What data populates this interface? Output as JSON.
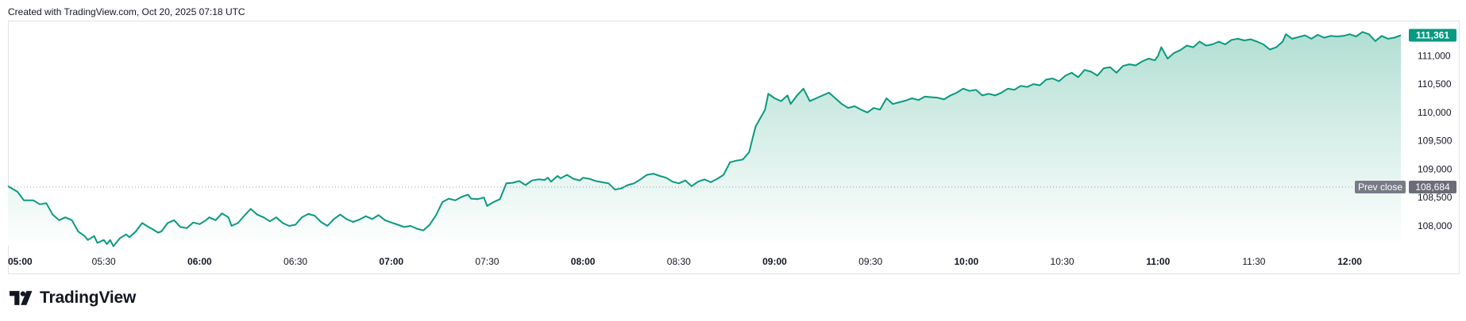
{
  "header": {
    "caption": "Created with TradingView.com, Oct 20, 2025 07:18 UTC"
  },
  "brand": {
    "name": "TradingView",
    "logo_icon": "tradingview-logo-icon"
  },
  "colors": {
    "line": "#089981",
    "fill_top": "#b2dfd3",
    "fill_bottom": "#ffffff",
    "grid": "#e0e3eb",
    "prev_close_label_bg": "#787b86",
    "prev_close_value_bg": "#6a6d78",
    "last_price_bg": "#089981",
    "axis_text": "#131722"
  },
  "chart_data": {
    "type": "area",
    "title": "",
    "xlabel": "",
    "ylabel": "",
    "x_ticks": [
      {
        "label": "05:00",
        "t": 0,
        "bold": true
      },
      {
        "label": "05:30",
        "t": 30,
        "bold": false
      },
      {
        "label": "06:00",
        "t": 60,
        "bold": true
      },
      {
        "label": "06:30",
        "t": 90,
        "bold": false
      },
      {
        "label": "07:00",
        "t": 120,
        "bold": true
      },
      {
        "label": "07:30",
        "t": 150,
        "bold": false
      },
      {
        "label": "08:00",
        "t": 180,
        "bold": true
      },
      {
        "label": "08:30",
        "t": 210,
        "bold": false
      },
      {
        "label": "09:00",
        "t": 240,
        "bold": true
      },
      {
        "label": "09:30",
        "t": 270,
        "bold": false
      },
      {
        "label": "10:00",
        "t": 300,
        "bold": true
      },
      {
        "label": "10:30",
        "t": 330,
        "bold": false
      },
      {
        "label": "11:00",
        "t": 360,
        "bold": true
      },
      {
        "label": "11:30",
        "t": 390,
        "bold": false
      },
      {
        "label": "12:00",
        "t": 420,
        "bold": true
      }
    ],
    "y_ticks": [
      {
        "label": "108,000",
        "value": 108000
      },
      {
        "label": "108,500",
        "value": 108500
      },
      {
        "label": "109,000",
        "value": 109000
      },
      {
        "label": "109,500",
        "value": 109500
      },
      {
        "label": "110,000",
        "value": 110000
      },
      {
        "label": "110,500",
        "value": 110500
      },
      {
        "label": "111,000",
        "value": 111000
      }
    ],
    "ylim": [
      107650,
      111620
    ],
    "xlim": [
      0,
      437
    ],
    "points": [
      [
        0,
        108700
      ],
      [
        3,
        108600
      ],
      [
        5,
        108450
      ],
      [
        8,
        108450
      ],
      [
        10,
        108380
      ],
      [
        12,
        108400
      ],
      [
        14,
        108200
      ],
      [
        16,
        108100
      ],
      [
        18,
        108150
      ],
      [
        20,
        108100
      ],
      [
        22,
        107900
      ],
      [
        24,
        107820
      ],
      [
        25,
        107750
      ],
      [
        27,
        107820
      ],
      [
        28,
        107700
      ],
      [
        30,
        107750
      ],
      [
        31,
        107680
      ],
      [
        32,
        107750
      ],
      [
        33,
        107640
      ],
      [
        35,
        107780
      ],
      [
        37,
        107850
      ],
      [
        38,
        107800
      ],
      [
        40,
        107900
      ],
      [
        42,
        108050
      ],
      [
        44,
        107980
      ],
      [
        45,
        107950
      ],
      [
        47,
        107880
      ],
      [
        48,
        107900
      ],
      [
        50,
        108050
      ],
      [
        52,
        108100
      ],
      [
        54,
        107980
      ],
      [
        56,
        107960
      ],
      [
        58,
        108060
      ],
      [
        60,
        108030
      ],
      [
        62,
        108100
      ],
      [
        63,
        108150
      ],
      [
        65,
        108100
      ],
      [
        67,
        108220
      ],
      [
        69,
        108150
      ],
      [
        70,
        108000
      ],
      [
        72,
        108050
      ],
      [
        74,
        108180
      ],
      [
        76,
        108300
      ],
      [
        78,
        108200
      ],
      [
        80,
        108150
      ],
      [
        82,
        108080
      ],
      [
        84,
        108150
      ],
      [
        86,
        108050
      ],
      [
        88,
        108000
      ],
      [
        90,
        108020
      ],
      [
        92,
        108150
      ],
      [
        94,
        108210
      ],
      [
        96,
        108180
      ],
      [
        98,
        108070
      ],
      [
        100,
        108000
      ],
      [
        102,
        108120
      ],
      [
        104,
        108200
      ],
      [
        106,
        108120
      ],
      [
        108,
        108070
      ],
      [
        110,
        108110
      ],
      [
        112,
        108170
      ],
      [
        114,
        108120
      ],
      [
        116,
        108190
      ],
      [
        118,
        108100
      ],
      [
        120,
        108060
      ],
      [
        122,
        108020
      ],
      [
        124,
        107980
      ],
      [
        126,
        108000
      ],
      [
        128,
        107950
      ],
      [
        130,
        107920
      ],
      [
        132,
        108020
      ],
      [
        134,
        108190
      ],
      [
        136,
        108420
      ],
      [
        138,
        108480
      ],
      [
        140,
        108450
      ],
      [
        142,
        108510
      ],
      [
        144,
        108550
      ],
      [
        145,
        108480
      ],
      [
        147,
        108470
      ],
      [
        149,
        108500
      ],
      [
        150,
        108350
      ],
      [
        152,
        108420
      ],
      [
        154,
        108470
      ],
      [
        156,
        108750
      ],
      [
        158,
        108760
      ],
      [
        160,
        108790
      ],
      [
        162,
        108720
      ],
      [
        164,
        108800
      ],
      [
        166,
        108820
      ],
      [
        168,
        108810
      ],
      [
        169,
        108850
      ],
      [
        170,
        108780
      ],
      [
        172,
        108880
      ],
      [
        173,
        108840
      ],
      [
        175,
        108900
      ],
      [
        177,
        108830
      ],
      [
        179,
        108800
      ],
      [
        180,
        108850
      ],
      [
        182,
        108830
      ],
      [
        184,
        108790
      ],
      [
        186,
        108770
      ],
      [
        188,
        108750
      ],
      [
        190,
        108640
      ],
      [
        192,
        108660
      ],
      [
        194,
        108720
      ],
      [
        196,
        108750
      ],
      [
        198,
        108820
      ],
      [
        200,
        108900
      ],
      [
        202,
        108920
      ],
      [
        204,
        108880
      ],
      [
        206,
        108850
      ],
      [
        208,
        108780
      ],
      [
        210,
        108750
      ],
      [
        212,
        108800
      ],
      [
        214,
        108700
      ],
      [
        216,
        108780
      ],
      [
        218,
        108820
      ],
      [
        220,
        108770
      ],
      [
        222,
        108830
      ],
      [
        224,
        108900
      ],
      [
        226,
        109120
      ],
      [
        228,
        109150
      ],
      [
        230,
        109170
      ],
      [
        232,
        109300
      ],
      [
        234,
        109750
      ],
      [
        236,
        109950
      ],
      [
        237,
        110050
      ],
      [
        238,
        110330
      ],
      [
        240,
        110250
      ],
      [
        242,
        110200
      ],
      [
        244,
        110300
      ],
      [
        245,
        110150
      ],
      [
        247,
        110300
      ],
      [
        249,
        110420
      ],
      [
        251,
        110200
      ],
      [
        253,
        110250
      ],
      [
        255,
        110300
      ],
      [
        257,
        110350
      ],
      [
        259,
        110250
      ],
      [
        261,
        110150
      ],
      [
        263,
        110080
      ],
      [
        265,
        110110
      ],
      [
        267,
        110050
      ],
      [
        269,
        110000
      ],
      [
        271,
        110080
      ],
      [
        273,
        110050
      ],
      [
        275,
        110250
      ],
      [
        277,
        110150
      ],
      [
        279,
        110180
      ],
      [
        281,
        110210
      ],
      [
        283,
        110250
      ],
      [
        285,
        110220
      ],
      [
        287,
        110280
      ],
      [
        289,
        110270
      ],
      [
        291,
        110260
      ],
      [
        293,
        110230
      ],
      [
        295,
        110300
      ],
      [
        297,
        110350
      ],
      [
        299,
        110420
      ],
      [
        301,
        110380
      ],
      [
        303,
        110400
      ],
      [
        305,
        110300
      ],
      [
        307,
        110330
      ],
      [
        309,
        110300
      ],
      [
        311,
        110350
      ],
      [
        313,
        110420
      ],
      [
        315,
        110400
      ],
      [
        317,
        110470
      ],
      [
        319,
        110450
      ],
      [
        321,
        110500
      ],
      [
        323,
        110480
      ],
      [
        325,
        110580
      ],
      [
        327,
        110600
      ],
      [
        329,
        110550
      ],
      [
        331,
        110650
      ],
      [
        333,
        110700
      ],
      [
        335,
        110620
      ],
      [
        337,
        110750
      ],
      [
        339,
        110720
      ],
      [
        341,
        110650
      ],
      [
        343,
        110780
      ],
      [
        345,
        110800
      ],
      [
        347,
        110700
      ],
      [
        349,
        110820
      ],
      [
        351,
        110850
      ],
      [
        353,
        110830
      ],
      [
        355,
        110900
      ],
      [
        357,
        110950
      ],
      [
        359,
        110920
      ],
      [
        360,
        111000
      ],
      [
        361,
        111150
      ],
      [
        363,
        110950
      ],
      [
        365,
        111050
      ],
      [
        367,
        111100
      ],
      [
        369,
        111180
      ],
      [
        371,
        111150
      ],
      [
        373,
        111250
      ],
      [
        375,
        111180
      ],
      [
        377,
        111200
      ],
      [
        379,
        111250
      ],
      [
        381,
        111200
      ],
      [
        383,
        111280
      ],
      [
        385,
        111300
      ],
      [
        387,
        111270
      ],
      [
        389,
        111290
      ],
      [
        391,
        111250
      ],
      [
        393,
        111200
      ],
      [
        395,
        111110
      ],
      [
        397,
        111150
      ],
      [
        399,
        111250
      ],
      [
        400,
        111380
      ],
      [
        402,
        111300
      ],
      [
        404,
        111330
      ],
      [
        406,
        111360
      ],
      [
        408,
        111300
      ],
      [
        410,
        111370
      ],
      [
        412,
        111320
      ],
      [
        414,
        111350
      ],
      [
        416,
        111340
      ],
      [
        418,
        111350
      ],
      [
        420,
        111380
      ],
      [
        422,
        111340
      ],
      [
        424,
        111420
      ],
      [
        426,
        111380
      ],
      [
        428,
        111260
      ],
      [
        430,
        111350
      ],
      [
        432,
        111300
      ],
      [
        434,
        111320
      ],
      [
        436,
        111361
      ]
    ],
    "last": {
      "value": 111361,
      "label": "111,361"
    },
    "prev_close": {
      "value": 108684,
      "label": "108,684",
      "tag": "Prev close"
    },
    "grid": false,
    "legend": "none"
  }
}
